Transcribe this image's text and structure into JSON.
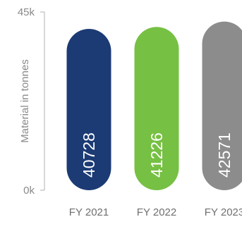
{
  "chart_data": {
    "type": "bar",
    "ylabel": "Material in tonnes",
    "ylim": [
      0,
      45000
    ],
    "yticks": [
      {
        "value": 0,
        "label": "0k"
      },
      {
        "value": 45000,
        "label": "45k"
      }
    ],
    "categories": [
      "FY 2021",
      "FY 2022",
      "FY 2023"
    ],
    "values": [
      40728,
      41226,
      42571
    ],
    "value_labels": [
      "40728",
      "41226",
      "42571"
    ],
    "colors": [
      "#1c3b74",
      "#76c043",
      "#8c8c8c"
    ],
    "axis_color": "#b0b0b0",
    "grid": false
  }
}
